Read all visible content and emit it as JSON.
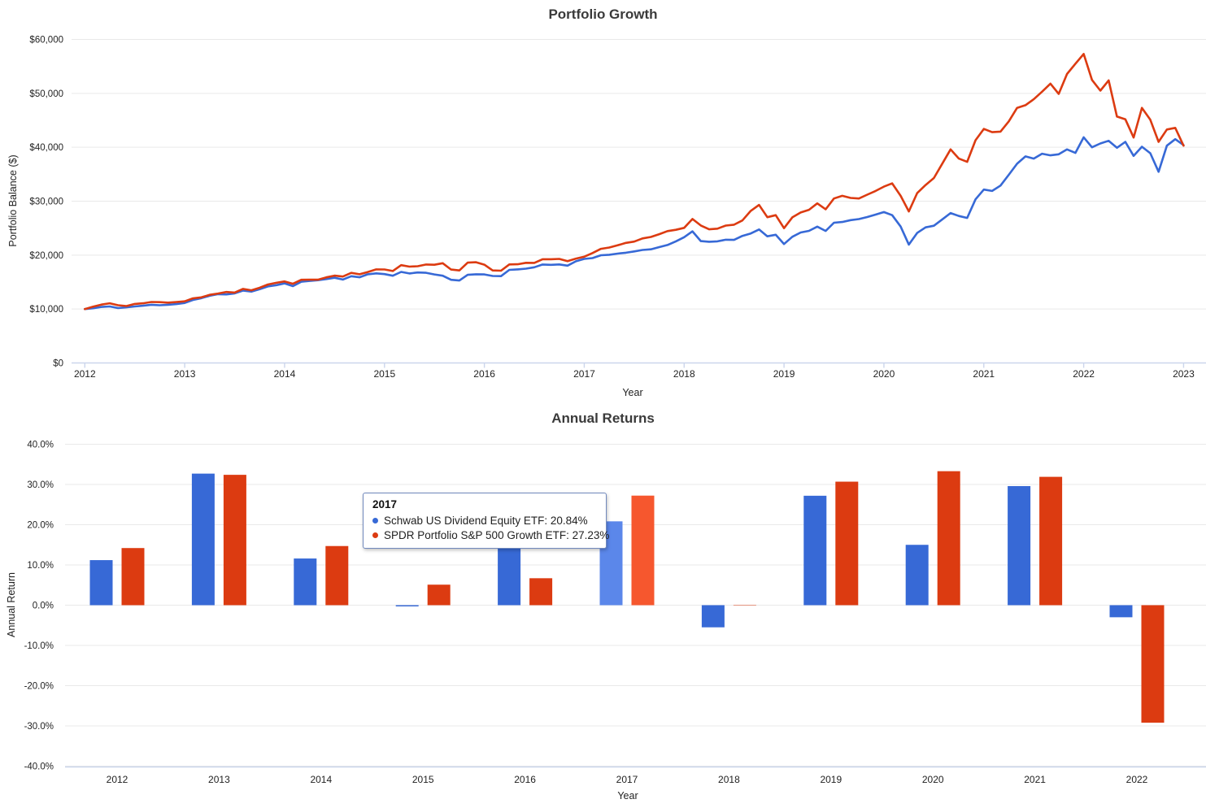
{
  "page": {
    "top_title": "Portfolio Growth",
    "bottom_title": "Annual Returns"
  },
  "colors": {
    "blue": "#3769D6",
    "red": "#DC3B11",
    "blue_highlight": "#5B87EA",
    "red_highlight": "#F6572E",
    "gridline": "#e9e9e9",
    "axis_line": "#ccd6ec",
    "tooltip_border": "#7189bd",
    "title_text": "#3a3a3a",
    "tick_text": "#1f1f1f"
  },
  "tooltip": {
    "title": "2017",
    "items": [
      {
        "series": "Schwab US Dividend Equity ETF",
        "value": "20.84%",
        "text": "Schwab US Dividend Equity ETF: 20.84%",
        "color": "#3769D6"
      },
      {
        "series": "SPDR Portfolio S&P 500 Growth ETF",
        "value": "27.23%",
        "text": "SPDR Portfolio S&P 500 Growth ETF: 27.23%",
        "color": "#DC3B11"
      }
    ]
  },
  "chart_data": [
    {
      "type": "line",
      "title": "Portfolio Growth",
      "xlabel": "Year",
      "ylabel": "Portfolio Balance ($)",
      "xlim": [
        2012,
        2023
      ],
      "ylim": [
        0,
        60000
      ],
      "grid": true,
      "legend": "none",
      "yticks": [
        0,
        10000,
        20000,
        30000,
        40000,
        50000,
        60000
      ],
      "ytick_labels": [
        "$0",
        "$10,000",
        "$20,000",
        "$30,000",
        "$40,000",
        "$50,000",
        "$60,000"
      ],
      "xticks": [
        2012,
        2013,
        2014,
        2015,
        2016,
        2017,
        2018,
        2019,
        2020,
        2021,
        2022,
        2023
      ],
      "xtick_labels": [
        "2012",
        "2013",
        "2014",
        "2015",
        "2016",
        "2017",
        "2018",
        "2019",
        "2020",
        "2021",
        "2022",
        "2023"
      ],
      "x": [
        2012,
        2012.083,
        2012.167,
        2012.25,
        2012.333,
        2012.417,
        2012.5,
        2012.583,
        2012.667,
        2012.75,
        2012.833,
        2012.917,
        2013,
        2013.083,
        2013.167,
        2013.25,
        2013.333,
        2013.417,
        2013.5,
        2013.583,
        2013.667,
        2013.75,
        2013.833,
        2013.917,
        2014,
        2014.083,
        2014.167,
        2014.25,
        2014.333,
        2014.417,
        2014.5,
        2014.583,
        2014.667,
        2014.75,
        2014.833,
        2014.917,
        2015,
        2015.083,
        2015.167,
        2015.25,
        2015.333,
        2015.417,
        2015.5,
        2015.583,
        2015.667,
        2015.75,
        2015.833,
        2015.917,
        2016,
        2016.083,
        2016.167,
        2016.25,
        2016.333,
        2016.417,
        2016.5,
        2016.583,
        2016.667,
        2016.75,
        2016.833,
        2016.917,
        2017,
        2017.083,
        2017.167,
        2017.25,
        2017.333,
        2017.417,
        2017.5,
        2017.583,
        2017.667,
        2017.75,
        2017.833,
        2017.917,
        2018,
        2018.083,
        2018.167,
        2018.25,
        2018.333,
        2018.417,
        2018.5,
        2018.583,
        2018.667,
        2018.75,
        2018.833,
        2018.917,
        2019,
        2019.083,
        2019.167,
        2019.25,
        2019.333,
        2019.417,
        2019.5,
        2019.583,
        2019.667,
        2019.75,
        2019.833,
        2019.917,
        2020,
        2020.083,
        2020.167,
        2020.25,
        2020.333,
        2020.417,
        2020.5,
        2020.583,
        2020.667,
        2020.75,
        2020.833,
        2020.917,
        2021,
        2021.083,
        2021.167,
        2021.25,
        2021.333,
        2021.417,
        2021.5,
        2021.583,
        2021.667,
        2021.75,
        2021.833,
        2021.917,
        2022,
        2022.083,
        2022.167,
        2022.25,
        2022.333,
        2022.417,
        2022.5,
        2022.583,
        2022.667,
        2022.75,
        2022.833,
        2022.917,
        2023
      ],
      "series": [
        {
          "name": "Schwab US Dividend Equity ETF",
          "color": "#3769D6",
          "values": [
            10000,
            10150,
            10390,
            10470,
            10180,
            10310,
            10480,
            10610,
            10800,
            10710,
            10790,
            10910,
            11120,
            11680,
            12020,
            12450,
            12750,
            12710,
            12900,
            13420,
            13230,
            13680,
            14180,
            14420,
            14760,
            14250,
            15060,
            15210,
            15340,
            15560,
            15800,
            15470,
            16090,
            15890,
            16440,
            16620,
            16470,
            16180,
            16890,
            16600,
            16780,
            16720,
            16420,
            16180,
            15420,
            15280,
            16340,
            16440,
            16420,
            16130,
            16100,
            17260,
            17350,
            17480,
            17740,
            18260,
            18200,
            18270,
            18050,
            18860,
            19300,
            19450,
            19980,
            20060,
            20280,
            20440,
            20690,
            20950,
            21080,
            21480,
            21870,
            22550,
            23320,
            24400,
            22600,
            22480,
            22550,
            22850,
            22830,
            23570,
            24010,
            24750,
            23480,
            23770,
            22050,
            23400,
            24190,
            24490,
            25280,
            24480,
            26010,
            26140,
            26480,
            26680,
            27060,
            27510,
            27980,
            27400,
            25300,
            21950,
            24100,
            25150,
            25450,
            26600,
            27800,
            27250,
            26900,
            30350,
            32150,
            31900,
            32900,
            34900,
            36950,
            38300,
            37900,
            38800,
            38500,
            38700,
            39600,
            38950,
            41850,
            40000,
            40700,
            41200,
            39900,
            41000,
            38400,
            40100,
            38900,
            35450,
            40300,
            41500,
            40400
          ]
        },
        {
          "name": "SPDR Portfolio S&P 500 Growth ETF",
          "color": "#DC3B11",
          "values": [
            10000,
            10430,
            10830,
            11060,
            10710,
            10560,
            10940,
            11060,
            11300,
            11280,
            11180,
            11290,
            11420,
            11990,
            12170,
            12630,
            12870,
            13160,
            13050,
            13730,
            13480,
            13940,
            14550,
            14870,
            15120,
            14680,
            15420,
            15430,
            15440,
            15870,
            16190,
            16020,
            16710,
            16440,
            16870,
            17350,
            17340,
            17050,
            18140,
            17860,
            17940,
            18260,
            18210,
            18490,
            17320,
            17160,
            18610,
            18680,
            18230,
            17160,
            17110,
            18270,
            18300,
            18570,
            18560,
            19240,
            19230,
            19290,
            18880,
            19350,
            19700,
            20380,
            21170,
            21400,
            21810,
            22260,
            22510,
            23090,
            23360,
            23880,
            24450,
            24700,
            25060,
            26700,
            25500,
            24790,
            24900,
            25480,
            25650,
            26420,
            28200,
            29300,
            27030,
            27400,
            25000,
            27000,
            27900,
            28400,
            29600,
            28500,
            30500,
            31000,
            30600,
            30500,
            31200,
            31900,
            32700,
            33300,
            31000,
            28100,
            31500,
            33000,
            34300,
            36900,
            39600,
            37900,
            37300,
            41300,
            43400,
            42800,
            42900,
            44800,
            47300,
            47800,
            48900,
            50300,
            51800,
            49900,
            53600,
            55500,
            57300,
            52500,
            50500,
            52400,
            45700,
            45200,
            41800,
            47300,
            45100,
            41000,
            43300,
            43600,
            40300
          ]
        }
      ]
    },
    {
      "type": "bar",
      "title": "Annual Returns",
      "xlabel": "Year",
      "ylabel": "Annual Return",
      "ylim": [
        -40,
        40
      ],
      "grid": true,
      "legend": "none",
      "highlighted_category": "2017",
      "yticks": [
        40,
        30,
        20,
        10,
        0,
        -10,
        -20,
        -30,
        -40
      ],
      "ytick_labels": [
        "40.0%",
        "30.0%",
        "20.0%",
        "10.0%",
        "0.0%",
        "-10.0%",
        "-20.0%",
        "-30.0%",
        "-40.0%"
      ],
      "categories": [
        "2012",
        "2013",
        "2014",
        "2015",
        "2016",
        "2017",
        "2018",
        "2019",
        "2020",
        "2021",
        "2022"
      ],
      "series": [
        {
          "name": "Schwab US Dividend Equity ETF",
          "color": "#3769D6",
          "highlight_color": "#5B87EA",
          "values": [
            11.2,
            32.7,
            11.6,
            -0.3,
            16.5,
            20.84,
            -5.5,
            27.2,
            15.0,
            29.6,
            -3.0
          ]
        },
        {
          "name": "SPDR Portfolio S&P 500 Growth ETF",
          "color": "#DC3B11",
          "highlight_color": "#F6572E",
          "values": [
            14.2,
            32.4,
            14.7,
            5.1,
            6.7,
            27.23,
            -0.1,
            30.7,
            33.3,
            31.9,
            -29.2
          ]
        }
      ]
    }
  ]
}
